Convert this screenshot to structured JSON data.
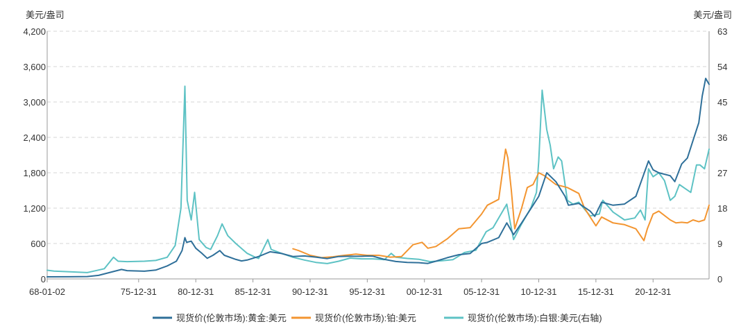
{
  "chart_data": {
    "type": "line",
    "y_left_unit": "美元/盎司",
    "y_right_unit": "美元/盎司",
    "y_left_ticks": [
      "0",
      "600",
      "1,200",
      "1,800",
      "2,400",
      "3,000",
      "3,600",
      "4,200"
    ],
    "y_right_ticks": [
      "0",
      "9",
      "18",
      "27",
      "36",
      "45",
      "54",
      "63"
    ],
    "ylim_left": [
      0,
      4200
    ],
    "ylim_right": [
      0,
      63
    ],
    "x_ticks": [
      "68-01-02",
      "75-12-31",
      "80-12-31",
      "85-12-31",
      "90-12-31",
      "95-12-31",
      "00-12-31",
      "05-12-31",
      "10-12-31",
      "15-12-31",
      "20-12-31"
    ],
    "x_tick_years": [
      1968.0,
      1976.0,
      1981.0,
      1986.0,
      1991.0,
      1996.0,
      2001.0,
      2006.0,
      2011.0,
      2016.0,
      2021.0
    ],
    "xlim": [
      1968.0,
      2025.9
    ],
    "grid": "horizontal-dashed",
    "legend_position": "bottom",
    "series": [
      {
        "name": "现货价(伦敦市场):黄金:美元",
        "axis": "left",
        "color": "#2e6f99",
        "x": [
          1968.0,
          1970.0,
          1971.5,
          1972.5,
          1973.5,
          1974.5,
          1975.0,
          1976.5,
          1977.5,
          1978.5,
          1979.3,
          1979.8,
          1980.05,
          1980.2,
          1980.6,
          1981.0,
          1981.5,
          1982.0,
          1982.5,
          1983.1,
          1983.5,
          1984.5,
          1985.0,
          1985.5,
          1986.5,
          1987.5,
          1988.5,
          1989.5,
          1990.5,
          1991.5,
          1992.5,
          1993.5,
          1994.5,
          1995.5,
          1996.0,
          1996.5,
          1997.5,
          1998.5,
          1999.5,
          2000.5,
          2001.3,
          2002.0,
          2003.0,
          2004.0,
          2005.0,
          2006.0,
          2006.5,
          2007.5,
          2008.2,
          2008.8,
          2009.5,
          2010.5,
          2011.0,
          2011.7,
          2012.5,
          2013.3,
          2013.6,
          2014.5,
          2015.5,
          2015.9,
          2016.5,
          2017.5,
          2018.5,
          2019.5,
          2020.6,
          2021.0,
          2021.5,
          2022.5,
          2022.9,
          2023.5,
          2024.0,
          2024.5,
          2025.0,
          2025.3,
          2025.6,
          2025.9
        ],
        "y": [
          35,
          36,
          40,
          60,
          110,
          160,
          140,
          130,
          150,
          220,
          300,
          480,
          700,
          620,
          640,
          520,
          440,
          350,
          400,
          480,
          400,
          330,
          305,
          320,
          380,
          460,
          430,
          380,
          390,
          370,
          345,
          380,
          385,
          384,
          388,
          385,
          330,
          295,
          280,
          275,
          262,
          300,
          360,
          410,
          430,
          600,
          620,
          700,
          950,
          750,
          950,
          1250,
          1400,
          1800,
          1650,
          1400,
          1250,
          1280,
          1150,
          1060,
          1300,
          1250,
          1270,
          1400,
          2000,
          1850,
          1800,
          1750,
          1650,
          1950,
          2050,
          2350,
          2650,
          3100,
          3400,
          3300
        ]
      },
      {
        "name": "现货价(伦敦市场):铂:美元",
        "axis": "left",
        "color": "#f39530",
        "x": [
          1989.5,
          1990.0,
          1991.0,
          1992.0,
          1993.0,
          1994.0,
          1995.0,
          1996.0,
          1997.0,
          1998.0,
          1999.0,
          2000.0,
          2000.8,
          2001.3,
          2002.0,
          2003.0,
          2004.0,
          2005.0,
          2006.0,
          2006.5,
          2007.5,
          2008.1,
          2008.3,
          2008.6,
          2008.9,
          2009.5,
          2010.0,
          2010.5,
          2011.0,
          2011.5,
          2012.5,
          2013.5,
          2014.5,
          2015.0,
          2015.5,
          2016.0,
          2016.5,
          2017.5,
          2018.5,
          2019.5,
          2020.2,
          2020.5,
          2021.0,
          2021.5,
          2022.5,
          2023.0,
          2023.5,
          2024.0,
          2024.5,
          2025.0,
          2025.5,
          2025.9
        ],
        "y": [
          510,
          480,
          400,
          360,
          375,
          400,
          420,
          400,
          400,
          370,
          380,
          580,
          620,
          520,
          550,
          680,
          850,
          870,
          1100,
          1250,
          1350,
          2200,
          2050,
          1500,
          850,
          1200,
          1550,
          1600,
          1800,
          1750,
          1600,
          1550,
          1450,
          1200,
          1050,
          900,
          1050,
          950,
          920,
          850,
          650,
          850,
          1100,
          1150,
          1000,
          950,
          960,
          950,
          1000,
          970,
          1000,
          1250
        ]
      },
      {
        "name": "现货价(伦敦市场):白银:美元(右轴)",
        "axis": "right",
        "color": "#5dc2c4",
        "x": [
          1968.0,
          1968.6,
          1970.0,
          1971.5,
          1973.0,
          1973.8,
          1974.2,
          1975.0,
          1976.5,
          1977.5,
          1978.5,
          1979.2,
          1979.7,
          1980.05,
          1980.25,
          1980.6,
          1980.9,
          1981.3,
          1981.9,
          1982.3,
          1982.9,
          1983.3,
          1983.8,
          1984.5,
          1985.5,
          1986.2,
          1986.5,
          1987.3,
          1987.6,
          1988.5,
          1989.5,
          1990.5,
          1991.5,
          1992.5,
          1993.5,
          1994.5,
          1995.5,
          1996.5,
          1997.5,
          1998.1,
          1998.5,
          1999.5,
          2000.5,
          2001.5,
          2002.5,
          2003.5,
          2004.5,
          2005.5,
          2006.4,
          2007.0,
          2008.2,
          2008.8,
          2009.5,
          2010.3,
          2010.8,
          2011.0,
          2011.3,
          2011.7,
          2012.0,
          2012.3,
          2012.7,
          2013.0,
          2013.5,
          2014.0,
          2014.5,
          2015.5,
          2016.3,
          2016.6,
          2017.5,
          2018.5,
          2019.4,
          2019.9,
          2020.3,
          2020.6,
          2021.0,
          2021.5,
          2022.0,
          2022.5,
          2022.9,
          2023.3,
          2023.8,
          2024.3,
          2024.8,
          2025.1,
          2025.5,
          2025.9
        ],
        "y": [
          2.2,
          2.0,
          1.8,
          1.6,
          2.6,
          5.5,
          4.5,
          4.4,
          4.5,
          4.7,
          5.5,
          8.5,
          18,
          49,
          20,
          15,
          22,
          10,
          8,
          7.5,
          11,
          14,
          11,
          9,
          6.5,
          5.5,
          5.2,
          10,
          7.5,
          6.5,
          5.5,
          4.8,
          4.2,
          3.9,
          4.5,
          5.3,
          5.1,
          5.1,
          4.9,
          6.5,
          5.5,
          5.2,
          5.0,
          4.4,
          4.6,
          4.9,
          6.7,
          7.3,
          12,
          13,
          19,
          10,
          14,
          18,
          22,
          30,
          48,
          38,
          34,
          28,
          31,
          30,
          20,
          19,
          19.5,
          16,
          16.5,
          20,
          17,
          15,
          15.5,
          17.5,
          15,
          28,
          26,
          27,
          25,
          20,
          21,
          24,
          23,
          22,
          29,
          29,
          28,
          33
        ]
      }
    ]
  }
}
